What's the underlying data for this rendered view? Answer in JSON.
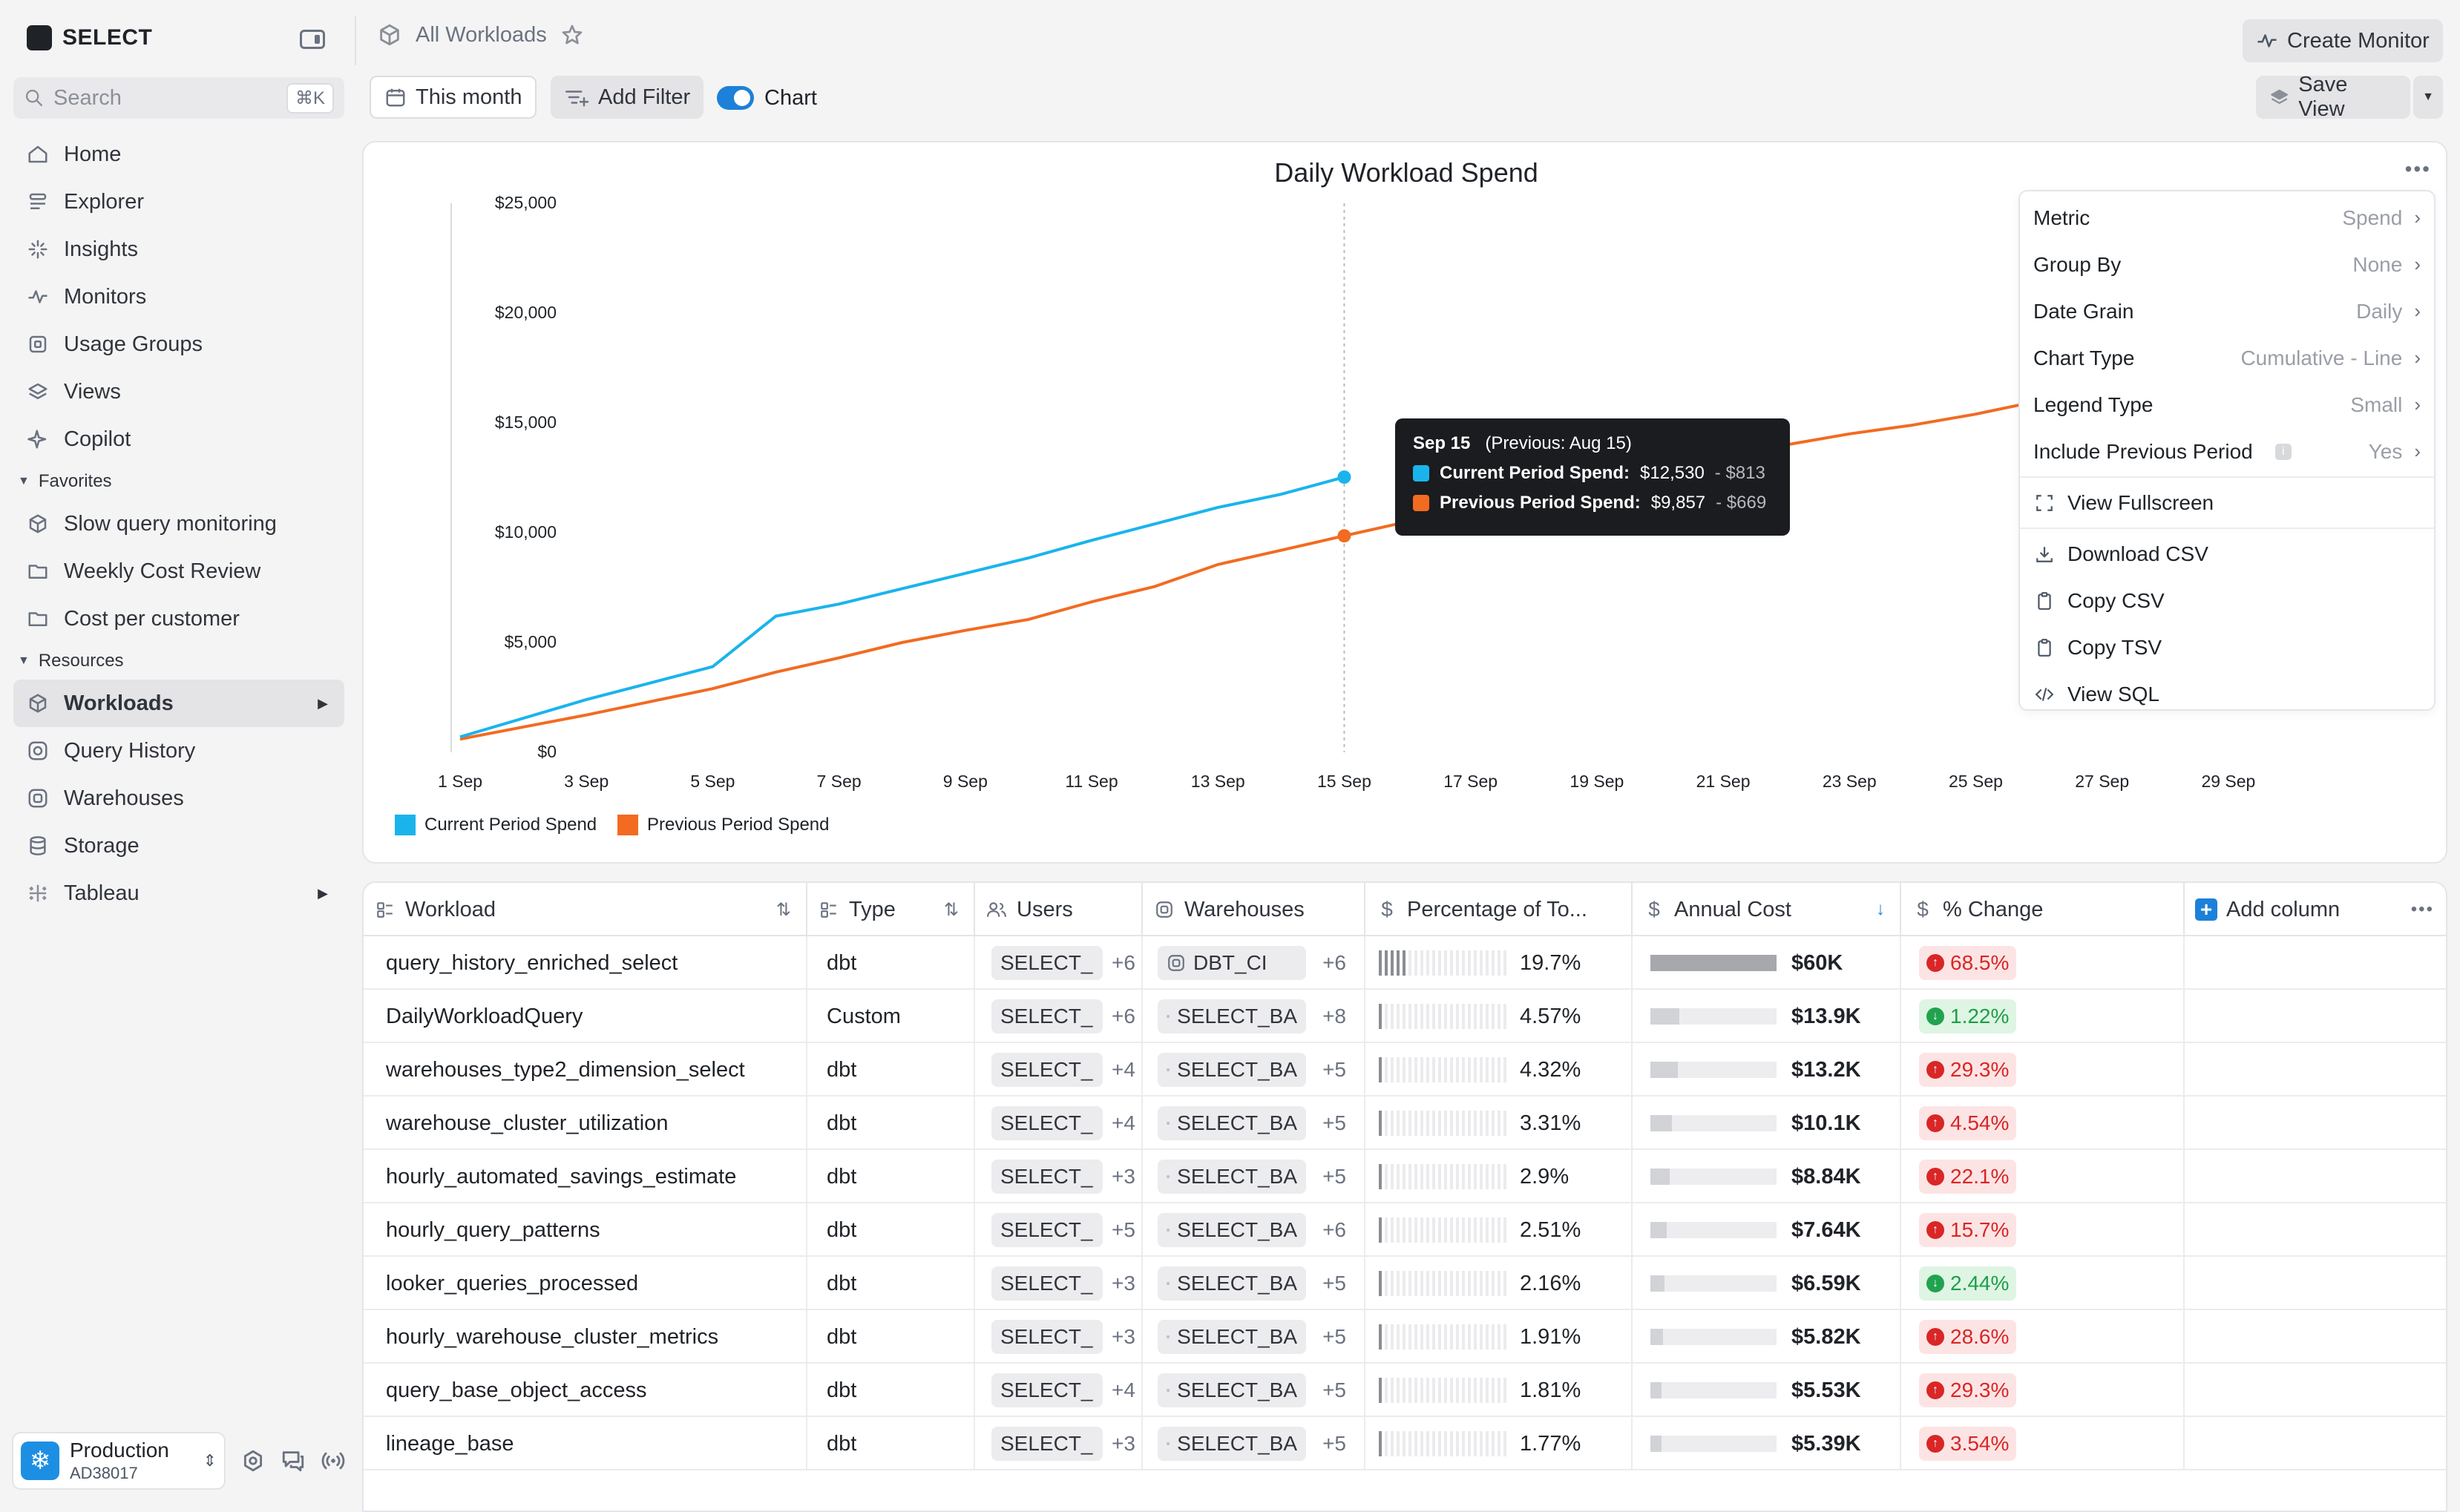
{
  "app": {
    "brand": "SELECT"
  },
  "search": {
    "placeholder": "Search",
    "shortcut": "⌘K"
  },
  "nav": {
    "main": [
      {
        "label": "Home",
        "icon": "home-icon"
      },
      {
        "label": "Explorer",
        "icon": "explorer-icon"
      },
      {
        "label": "Insights",
        "icon": "insights-icon"
      },
      {
        "label": "Monitors",
        "icon": "monitor-icon"
      },
      {
        "label": "Usage Groups",
        "icon": "usage-groups-icon"
      },
      {
        "label": "Views",
        "icon": "layers-icon"
      },
      {
        "label": "Copilot",
        "icon": "sparkle-icon"
      }
    ],
    "favorites_label": "Favorites",
    "favorites": [
      {
        "label": "Slow query monitoring",
        "icon": "cube-icon"
      },
      {
        "label": "Weekly Cost Review",
        "icon": "folder-icon"
      },
      {
        "label": "Cost per customer",
        "icon": "folder-icon"
      }
    ],
    "resources_label": "Resources",
    "resources": [
      {
        "label": "Workloads",
        "icon": "cube-icon",
        "active": true
      },
      {
        "label": "Query History",
        "icon": "query-history-icon"
      },
      {
        "label": "Warehouses",
        "icon": "warehouse-icon"
      },
      {
        "label": "Storage",
        "icon": "database-icon"
      },
      {
        "label": "Tableau",
        "icon": "tableau-icon"
      }
    ]
  },
  "workspace": {
    "name": "Production",
    "id": "AD38017"
  },
  "header": {
    "breadcrumb": "All Workloads",
    "create_monitor": "Create Monitor",
    "date_filter": "This month",
    "add_filter": "Add Filter",
    "chart_toggle": "Chart",
    "save_view": "Save View"
  },
  "chart_data": {
    "type": "line",
    "title": "Daily Workload Spend",
    "y_ticks": [
      "$25,000",
      "$20,000",
      "$15,000",
      "$10,000",
      "$5,000",
      "$0"
    ],
    "x_ticks": [
      "1 Sep",
      "3 Sep",
      "5 Sep",
      "7 Sep",
      "9 Sep",
      "11 Sep",
      "13 Sep",
      "15 Sep",
      "17 Sep",
      "19 Sep",
      "21 Sep",
      "23 Sep",
      "25 Sep",
      "27 Sep",
      "29 Sep"
    ],
    "ylim": [
      0,
      25000
    ],
    "xlim": [
      1,
      30
    ],
    "series": [
      {
        "name": "Current Period Spend",
        "color": "#1ab4ec",
        "x": [
          1,
          2,
          3,
          4,
          5,
          6,
          7,
          8,
          9,
          10,
          11,
          12,
          13,
          14,
          15
        ],
        "values": [
          700,
          1550,
          2400,
          3150,
          3900,
          6200,
          6750,
          7450,
          8150,
          8850,
          9650,
          10400,
          11150,
          11750,
          12530
        ]
      },
      {
        "name": "Previous Period Spend",
        "color": "#f26b21",
        "x": [
          1,
          2,
          3,
          4,
          5,
          6,
          7,
          8,
          9,
          10,
          11,
          12,
          13,
          14,
          15,
          16,
          17,
          18,
          19,
          20,
          21,
          22,
          23,
          24,
          25,
          26
        ],
        "values": [
          600,
          1150,
          1700,
          2300,
          2900,
          3650,
          4300,
          5000,
          5550,
          6050,
          6850,
          7550,
          8550,
          9200,
          9857,
          10500,
          11100,
          11700,
          12300,
          12850,
          13400,
          14000,
          14500,
          14900,
          15400,
          16000
        ]
      }
    ],
    "hover_x": 15
  },
  "tooltip": {
    "date": "Sep 15",
    "previous": "(Previous: Aug 15)",
    "rows": [
      {
        "label": "Current Period Spend:",
        "value": "$12,530",
        "delta": "- $813",
        "color": "#1ab4ec"
      },
      {
        "label": "Previous Period Spend:",
        "value": "$9,857",
        "delta": "- $669",
        "color": "#f26b21"
      }
    ]
  },
  "chart_menu": {
    "settings": [
      {
        "label": "Metric",
        "value": "Spend"
      },
      {
        "label": "Group By",
        "value": "None"
      },
      {
        "label": "Date Grain",
        "value": "Daily"
      },
      {
        "label": "Chart Type",
        "value": "Cumulative - Line"
      },
      {
        "label": "Legend Type",
        "value": "Small"
      },
      {
        "label": "Include Previous Period",
        "value": "Yes"
      }
    ],
    "fullscreen": "View Fullscreen",
    "actions": [
      "Download CSV",
      "Copy CSV",
      "Copy TSV",
      "View SQL"
    ]
  },
  "table": {
    "columns": [
      "Workload",
      "Type",
      "Users",
      "Warehouses",
      "Percentage of To...",
      "Annual Cost",
      "% Change",
      "Add column"
    ],
    "rows": [
      {
        "workload": "query_history_enriched_select",
        "type": "dbt",
        "user": "SELECT_",
        "users_more": "+6",
        "warehouse": "DBT_CI",
        "wh_more": "+6",
        "pct": "19.7%",
        "pct_val": 0.197,
        "cost": "$60K",
        "cost_frac": 1.0,
        "change": "68.5%",
        "dir": "up"
      },
      {
        "workload": "DailyWorkloadQuery",
        "type": "Custom",
        "user": "SELECT_",
        "users_more": "+6",
        "warehouse": "SELECT_BA",
        "wh_more": "+8",
        "pct": "4.57%",
        "pct_val": 0.0457,
        "cost": "$13.9K",
        "cost_frac": 0.23,
        "change": "1.22%",
        "dir": "down"
      },
      {
        "workload": "warehouses_type2_dimension_select",
        "type": "dbt",
        "user": "SELECT_",
        "users_more": "+4",
        "warehouse": "SELECT_BA",
        "wh_more": "+5",
        "pct": "4.32%",
        "pct_val": 0.0432,
        "cost": "$13.2K",
        "cost_frac": 0.22,
        "change": "29.3%",
        "dir": "up"
      },
      {
        "workload": "warehouse_cluster_utilization",
        "type": "dbt",
        "user": "SELECT_",
        "users_more": "+4",
        "warehouse": "SELECT_BA",
        "wh_more": "+5",
        "pct": "3.31%",
        "pct_val": 0.0331,
        "cost": "$10.1K",
        "cost_frac": 0.17,
        "change": "4.54%",
        "dir": "up"
      },
      {
        "workload": "hourly_automated_savings_estimate",
        "type": "dbt",
        "user": "SELECT_",
        "users_more": "+3",
        "warehouse": "SELECT_BA",
        "wh_more": "+5",
        "pct": "2.9%",
        "pct_val": 0.029,
        "cost": "$8.84K",
        "cost_frac": 0.15,
        "change": "22.1%",
        "dir": "up"
      },
      {
        "workload": "hourly_query_patterns",
        "type": "dbt",
        "user": "SELECT_",
        "users_more": "+5",
        "warehouse": "SELECT_BA",
        "wh_more": "+6",
        "pct": "2.51%",
        "pct_val": 0.0251,
        "cost": "$7.64K",
        "cost_frac": 0.13,
        "change": "15.7%",
        "dir": "up"
      },
      {
        "workload": "looker_queries_processed",
        "type": "dbt",
        "user": "SELECT_",
        "users_more": "+3",
        "warehouse": "SELECT_BA",
        "wh_more": "+5",
        "pct": "2.16%",
        "pct_val": 0.0216,
        "cost": "$6.59K",
        "cost_frac": 0.11,
        "change": "2.44%",
        "dir": "down"
      },
      {
        "workload": "hourly_warehouse_cluster_metrics",
        "type": "dbt",
        "user": "SELECT_",
        "users_more": "+3",
        "warehouse": "SELECT_BA",
        "wh_more": "+5",
        "pct": "1.91%",
        "pct_val": 0.0191,
        "cost": "$5.82K",
        "cost_frac": 0.1,
        "change": "28.6%",
        "dir": "up"
      },
      {
        "workload": "query_base_object_access",
        "type": "dbt",
        "user": "SELECT_",
        "users_more": "+4",
        "warehouse": "SELECT_BA",
        "wh_more": "+5",
        "pct": "1.81%",
        "pct_val": 0.0181,
        "cost": "$5.53K",
        "cost_frac": 0.09,
        "change": "29.3%",
        "dir": "up"
      },
      {
        "workload": "lineage_base",
        "type": "dbt",
        "user": "SELECT_",
        "users_more": "+3",
        "warehouse": "SELECT_BA",
        "wh_more": "+5",
        "pct": "1.77%",
        "pct_val": 0.0177,
        "cost": "$5.39K",
        "cost_frac": 0.09,
        "change": "3.54%",
        "dir": "up"
      }
    ]
  }
}
